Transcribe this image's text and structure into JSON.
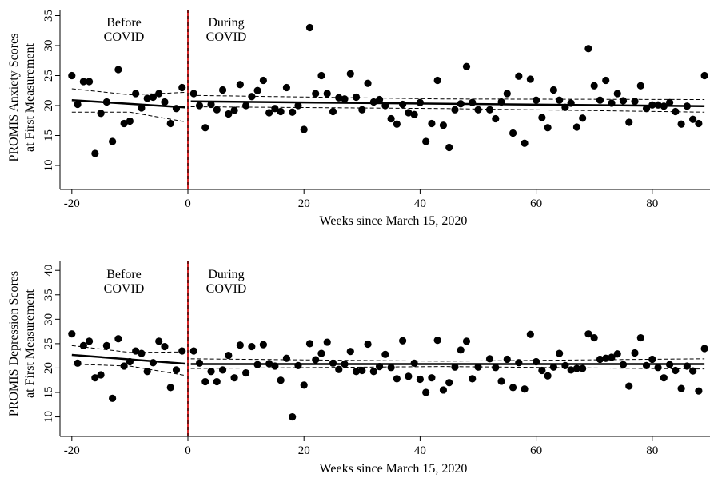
{
  "panels": [
    {
      "ylabel_line1": "PROMIS Anxiety Scores",
      "ylabel_line2": "at First Measurement",
      "xlabel": "Weeks since March 15, 2020",
      "before_label_1": "Before",
      "before_label_2": "COVID",
      "during_label_1": "During",
      "during_label_2": "COVID"
    },
    {
      "ylabel_line1": "PROMIS Depression Scores",
      "ylabel_line2": "at First Measurement",
      "xlabel": "Weeks since March 15, 2020",
      "before_label_1": "Before",
      "before_label_2": "COVID",
      "during_label_1": "During",
      "during_label_2": "COVID"
    }
  ],
  "colors": {
    "points": "#000000",
    "fit": "#000000",
    "ci": "#000000",
    "cutoff_red": "#d62728",
    "cutoff_black": "#000000"
  },
  "chart_data": [
    {
      "type": "scatter",
      "ylabel": "PROMIS Anxiety Scores at First Measurement",
      "xlabel": "Weeks since March 15, 2020",
      "xlim": [
        -22,
        88
      ],
      "ylim": [
        6,
        36
      ],
      "xticks": [
        -20,
        0,
        20,
        40,
        60,
        80
      ],
      "yticks": [
        10,
        15,
        20,
        25,
        30,
        35
      ],
      "cutoff_x": 0,
      "points": [
        [
          -20,
          25
        ],
        [
          -19,
          20.2
        ],
        [
          -18,
          24
        ],
        [
          -17,
          24
        ],
        [
          -16,
          12
        ],
        [
          -15,
          18.7
        ],
        [
          -14,
          20.6
        ],
        [
          -13,
          14
        ],
        [
          -12,
          26
        ],
        [
          -11,
          17
        ],
        [
          -10,
          17.4
        ],
        [
          -9,
          22
        ],
        [
          -8,
          19.6
        ],
        [
          -7,
          21.2
        ],
        [
          -6,
          21.4
        ],
        [
          -5,
          22
        ],
        [
          -4,
          20.6
        ],
        [
          -3,
          17
        ],
        [
          -2,
          19.5
        ],
        [
          -1,
          23
        ],
        [
          1,
          22
        ],
        [
          2,
          20
        ],
        [
          3,
          16.3
        ],
        [
          4,
          20.2
        ],
        [
          5,
          19.3
        ],
        [
          6,
          22.6
        ],
        [
          7,
          18.6
        ],
        [
          8,
          19.2
        ],
        [
          9,
          23.5
        ],
        [
          10,
          20
        ],
        [
          11,
          21.5
        ],
        [
          12,
          22.5
        ],
        [
          13,
          24.2
        ],
        [
          14,
          18.8
        ],
        [
          15,
          19.5
        ],
        [
          16,
          19
        ],
        [
          17,
          23
        ],
        [
          18,
          18.9
        ],
        [
          19,
          20
        ],
        [
          20,
          16
        ],
        [
          21,
          33
        ],
        [
          22,
          22
        ],
        [
          23,
          25
        ],
        [
          24,
          22
        ],
        [
          25,
          19
        ],
        [
          26,
          21.3
        ],
        [
          27,
          21.1
        ],
        [
          28,
          25.3
        ],
        [
          29,
          21.4
        ],
        [
          30,
          19.3
        ],
        [
          31,
          23.7
        ],
        [
          32,
          20.6
        ],
        [
          33,
          21
        ],
        [
          34,
          20
        ],
        [
          35,
          17.8
        ],
        [
          36,
          16.9
        ],
        [
          37,
          20.2
        ],
        [
          38,
          18.8
        ],
        [
          39,
          18.5
        ],
        [
          40,
          20.5
        ],
        [
          41,
          14
        ],
        [
          42,
          17
        ],
        [
          43,
          24.2
        ],
        [
          44,
          16.7
        ],
        [
          45,
          13
        ],
        [
          46,
          19.3
        ],
        [
          47,
          20.3
        ],
        [
          48,
          26.5
        ],
        [
          49,
          20.5
        ],
        [
          50,
          19.3
        ],
        [
          52,
          19.3
        ],
        [
          53,
          17.8
        ],
        [
          54,
          20.6
        ],
        [
          55,
          22
        ],
        [
          56,
          15.4
        ],
        [
          57,
          24.9
        ],
        [
          58,
          13.7
        ],
        [
          59,
          24.4
        ],
        [
          60,
          20.9
        ],
        [
          61,
          18
        ],
        [
          62,
          16.3
        ],
        [
          63,
          22.6
        ],
        [
          64,
          20.9
        ],
        [
          65,
          19.7
        ],
        [
          66,
          20.4
        ],
        [
          67,
          16.4
        ],
        [
          68,
          17.9
        ],
        [
          69,
          29.5
        ],
        [
          70,
          23.3
        ],
        [
          71,
          20.9
        ],
        [
          72,
          24.2
        ],
        [
          73,
          20.4
        ],
        [
          74,
          22
        ],
        [
          75,
          20.8
        ],
        [
          76,
          17.2
        ],
        [
          77,
          20.7
        ],
        [
          78,
          23.3
        ],
        [
          79,
          19.5
        ],
        [
          80,
          20.1
        ],
        [
          81,
          20.1
        ],
        [
          82,
          19.9
        ],
        [
          83,
          20.5
        ],
        [
          84,
          19
        ],
        [
          85,
          16.9
        ],
        [
          86,
          19.9
        ],
        [
          87,
          17.7
        ],
        [
          88,
          17
        ],
        [
          89,
          25
        ]
      ],
      "fit_before": {
        "x": [
          -20,
          -0.5
        ],
        "y": [
          20.9,
          19.7
        ]
      },
      "ci_before_upper": {
        "x": [
          -20,
          -10,
          -0.5
        ],
        "y": [
          22.8,
          21.8,
          22.2
        ]
      },
      "ci_before_lower": {
        "x": [
          -20,
          -10,
          -0.5
        ],
        "y": [
          18.9,
          18.9,
          17.3
        ]
      },
      "fit_during": {
        "x": [
          0.5,
          89
        ],
        "y": [
          20.7,
          19.9
        ]
      },
      "ci_during_upper": {
        "x": [
          0.5,
          44,
          89
        ],
        "y": [
          21.7,
          21.1,
          21.0
        ]
      },
      "ci_during_lower": {
        "x": [
          0.5,
          44,
          89
        ],
        "y": [
          19.8,
          19.5,
          18.9
        ]
      }
    },
    {
      "type": "scatter",
      "ylabel": "PROMIS Depression Scores at First Measurement",
      "xlabel": "Weeks since March 15, 2020",
      "xlim": [
        -22,
        88
      ],
      "ylim": [
        6,
        42
      ],
      "xticks": [
        -20,
        0,
        20,
        40,
        60,
        80
      ],
      "yticks": [
        10,
        15,
        20,
        25,
        30,
        35,
        40
      ],
      "cutoff_x": 0,
      "points": [
        [
          -20,
          27
        ],
        [
          -19,
          21
        ],
        [
          -18,
          24.6
        ],
        [
          -17,
          25.5
        ],
        [
          -16,
          18
        ],
        [
          -15,
          18.6
        ],
        [
          -14,
          24.6
        ],
        [
          -13,
          13.8
        ],
        [
          -12,
          26
        ],
        [
          -11,
          20.4
        ],
        [
          -10,
          21.3
        ],
        [
          -9,
          23.5
        ],
        [
          -8,
          23
        ],
        [
          -7,
          19.3
        ],
        [
          -6,
          21.1
        ],
        [
          -5,
          25.5
        ],
        [
          -4,
          24.4
        ],
        [
          -3,
          16
        ],
        [
          -2,
          19.6
        ],
        [
          -1,
          23.5
        ],
        [
          1,
          23.5
        ],
        [
          2,
          21
        ],
        [
          3,
          17.2
        ],
        [
          4,
          19.3
        ],
        [
          5,
          17.2
        ],
        [
          6,
          19.6
        ],
        [
          7,
          22.6
        ],
        [
          8,
          18
        ],
        [
          9,
          24.7
        ],
        [
          10,
          19
        ],
        [
          11,
          24.4
        ],
        [
          12,
          20.7
        ],
        [
          13,
          24.8
        ],
        [
          14,
          20.9
        ],
        [
          15,
          20.4
        ],
        [
          16,
          17.5
        ],
        [
          17,
          22
        ],
        [
          18,
          10
        ],
        [
          19,
          20.5
        ],
        [
          20,
          16.5
        ],
        [
          21,
          25
        ],
        [
          22,
          21.7
        ],
        [
          23,
          23
        ],
        [
          24,
          25.3
        ],
        [
          25,
          21
        ],
        [
          26,
          19.7
        ],
        [
          27,
          20.8
        ],
        [
          28,
          23.4
        ],
        [
          29,
          19.3
        ],
        [
          30,
          19.5
        ],
        [
          31,
          24.9
        ],
        [
          32,
          19.3
        ],
        [
          33,
          20.3
        ],
        [
          34,
          22.8
        ],
        [
          35,
          20.1
        ],
        [
          36,
          17.8
        ],
        [
          37,
          25.6
        ],
        [
          38,
          18.3
        ],
        [
          39,
          21
        ],
        [
          40,
          17.7
        ],
        [
          41,
          15
        ],
        [
          42,
          18
        ],
        [
          43,
          25.7
        ],
        [
          44,
          15.5
        ],
        [
          45,
          17
        ],
        [
          46,
          20.2
        ],
        [
          47,
          23.7
        ],
        [
          48,
          25.5
        ],
        [
          49,
          17.8
        ],
        [
          50,
          20.2
        ],
        [
          52,
          21.9
        ],
        [
          53,
          20.1
        ],
        [
          54,
          17.3
        ],
        [
          55,
          21.8
        ],
        [
          56,
          16
        ],
        [
          57,
          21.1
        ],
        [
          58,
          15.7
        ],
        [
          59,
          26.9
        ],
        [
          60,
          21.3
        ],
        [
          61,
          19.5
        ],
        [
          62,
          18.4
        ],
        [
          63,
          20.2
        ],
        [
          64,
          23
        ],
        [
          65,
          20.5
        ],
        [
          66,
          19.6
        ],
        [
          67,
          19.9
        ],
        [
          68,
          19.9
        ],
        [
          69,
          27
        ],
        [
          70,
          26.2
        ],
        [
          71,
          21.8
        ],
        [
          72,
          22
        ],
        [
          73,
          22.2
        ],
        [
          74,
          22.9
        ],
        [
          75,
          20.7
        ],
        [
          76,
          16.3
        ],
        [
          77,
          23.1
        ],
        [
          78,
          26.2
        ],
        [
          79,
          20.5
        ],
        [
          80,
          21.8
        ],
        [
          81,
          20.1
        ],
        [
          82,
          18
        ],
        [
          83,
          20.7
        ],
        [
          84,
          19.5
        ],
        [
          85,
          15.8
        ],
        [
          86,
          20.4
        ],
        [
          87,
          19.4
        ],
        [
          88,
          15.3
        ],
        [
          89,
          24
        ]
      ],
      "fit_before": {
        "x": [
          -20,
          -0.5
        ],
        "y": [
          22.7,
          20.9
        ]
      },
      "ci_before_upper": {
        "x": [
          -20,
          -10,
          -0.5
        ],
        "y": [
          24.6,
          23.2,
          23.3
        ]
      },
      "ci_before_lower": {
        "x": [
          -20,
          -10,
          -0.5
        ],
        "y": [
          20.8,
          20.4,
          18.5
        ]
      },
      "fit_during": {
        "x": [
          0.5,
          89
        ],
        "y": [
          20.8,
          20.8
        ]
      },
      "ci_during_upper": {
        "x": [
          0.5,
          44,
          89
        ],
        "y": [
          21.9,
          21.4,
          21.9
        ]
      },
      "ci_during_lower": {
        "x": [
          0.5,
          44,
          89
        ],
        "y": [
          19.9,
          20.3,
          19.8
        ]
      }
    }
  ]
}
